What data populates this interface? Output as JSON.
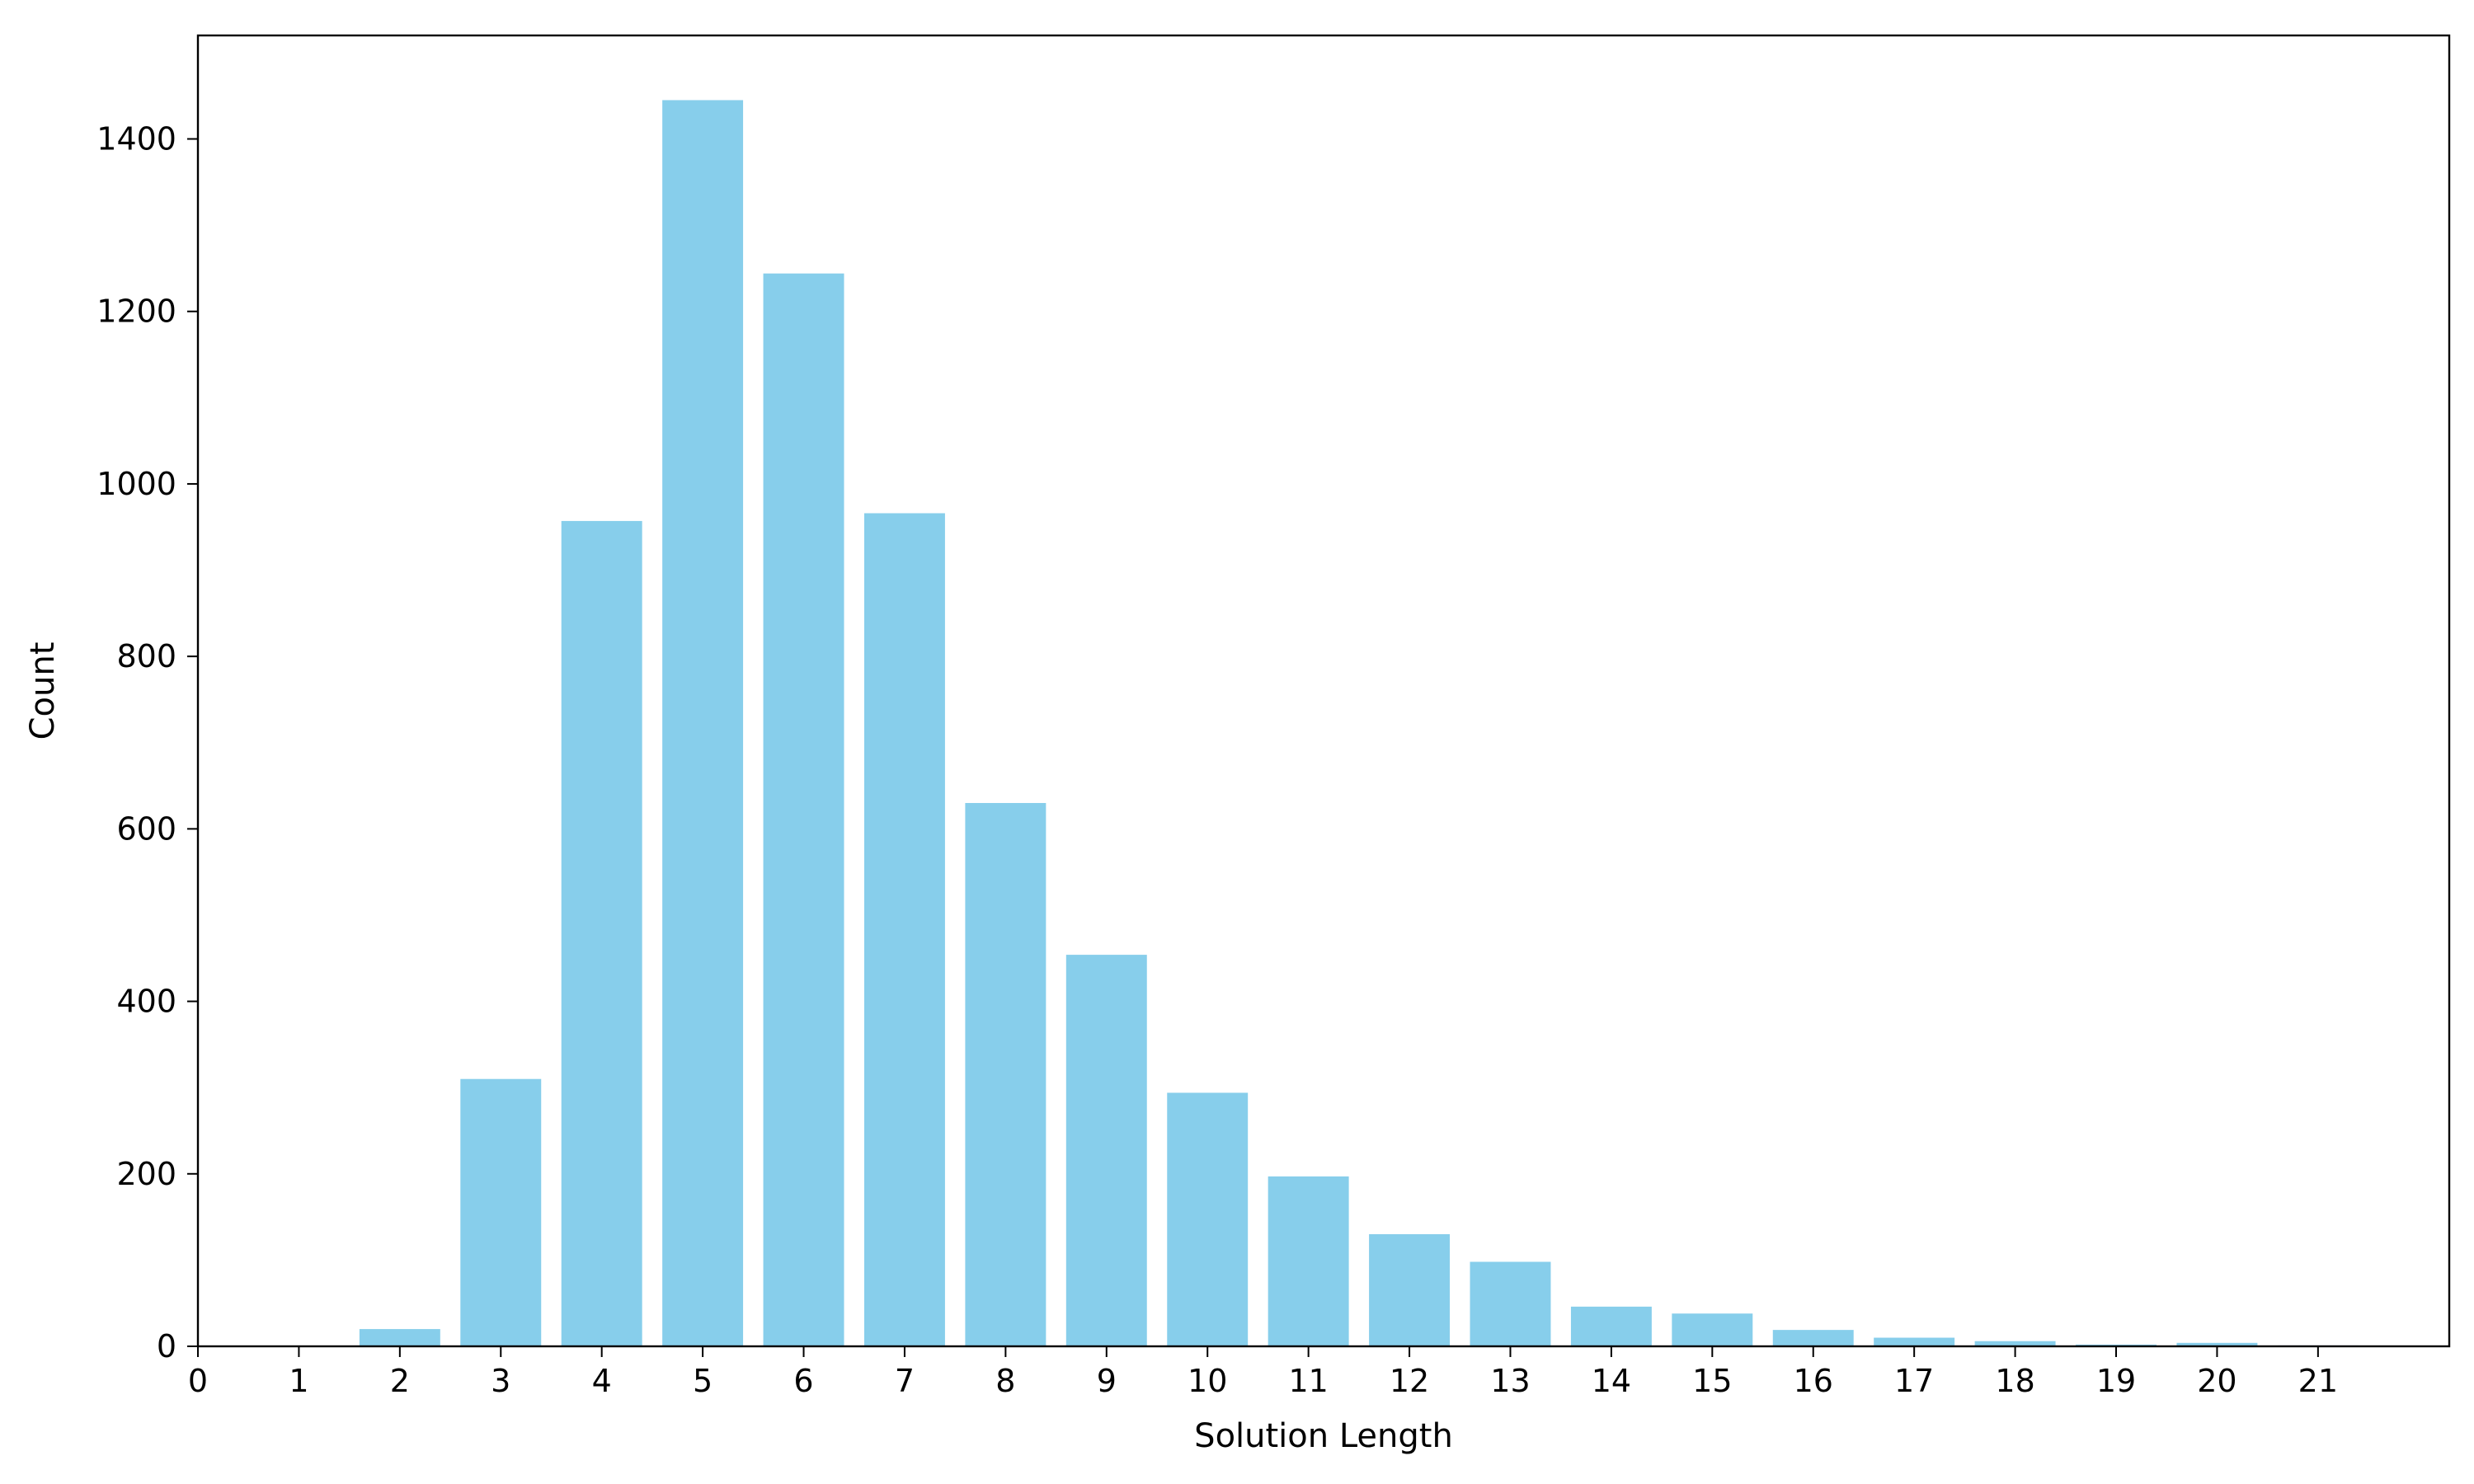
{
  "chart_data": {
    "type": "bar",
    "title": "",
    "xlabel": "Solution Length",
    "ylabel": "Count",
    "categories": [
      0,
      1,
      2,
      3,
      4,
      5,
      6,
      7,
      8,
      9,
      10,
      11,
      12,
      13,
      14,
      15,
      16,
      17,
      18,
      19,
      20,
      21
    ],
    "values": [
      0,
      0,
      20,
      310,
      957,
      1445,
      1244,
      966,
      630,
      454,
      294,
      197,
      130,
      98,
      46,
      38,
      19,
      10,
      6,
      2,
      4,
      1
    ],
    "x_ticks": [
      "0",
      "1",
      "2",
      "3",
      "4",
      "5",
      "6",
      "7",
      "8",
      "9",
      "10",
      "11",
      "12",
      "13",
      "14",
      "15",
      "16",
      "17",
      "18",
      "19",
      "20",
      "21"
    ],
    "y_ticks": [
      "0",
      "200",
      "400",
      "600",
      "800",
      "1000",
      "1200",
      "1400"
    ],
    "xlim": [
      0,
      22.3
    ],
    "ylim": [
      0,
      1520
    ],
    "bar_color": "#87ceeb",
    "grid": false,
    "legend": "none"
  }
}
